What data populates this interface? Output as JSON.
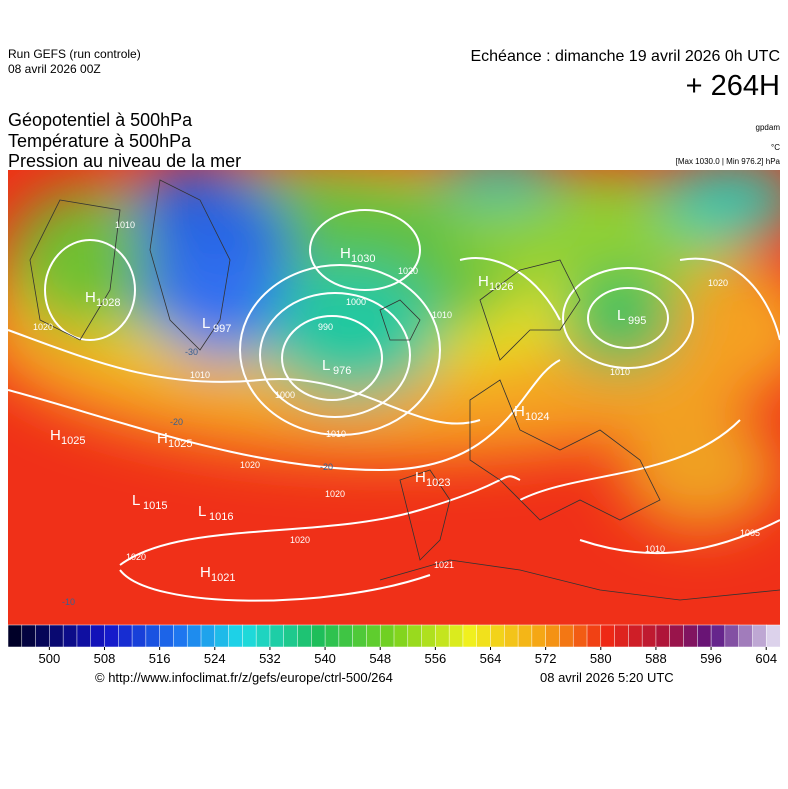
{
  "header": {
    "run": "Run GEFS (run controle)",
    "date": "08 avril 2026 00Z",
    "valid": "Echéance : dimanche 19 avril 2026 0h UTC",
    "lead": "+ 264H",
    "params": [
      "Géopotentiel à 500hPa",
      "Température à 500hPa",
      "Pression au niveau de la mer"
    ],
    "unit_geo": "gpdam",
    "unit_temp": "°C",
    "extrema": "[Max 1030.0 | Min 976.2] hPa"
  },
  "centers": [
    {
      "type": "H",
      "value": "1030"
    },
    {
      "type": "L",
      "value": "976"
    },
    {
      "type": "L",
      "value": "997"
    },
    {
      "type": "H",
      "value": "1028"
    },
    {
      "type": "H",
      "value": "1025"
    },
    {
      "type": "H",
      "value": "1025"
    },
    {
      "type": "L",
      "value": "1015"
    },
    {
      "type": "L",
      "value": "1016"
    },
    {
      "type": "H",
      "value": "1021"
    },
    {
      "type": "H",
      "value": "1023"
    },
    {
      "type": "H",
      "value": "1024"
    },
    {
      "type": "H",
      "value": "1026"
    },
    {
      "type": "L",
      "value": "995"
    }
  ],
  "isobar_labels": [
    "1020",
    "1000",
    "990",
    "1010",
    "1010",
    "1000",
    "1010",
    "1020",
    "1020",
    "1020",
    "1021",
    "1010",
    "1005",
    "1010",
    "1020",
    "1020",
    "1010",
    "1020"
  ],
  "temp_labels": [
    "-30",
    "-20",
    "-20",
    "-10"
  ],
  "colorbar": {
    "range": [
      494,
      606
    ],
    "ticks": [
      500,
      508,
      516,
      524,
      532,
      540,
      548,
      556,
      564,
      572,
      580,
      588,
      596,
      604
    ]
  },
  "footer": {
    "source": "© http://www.infoclimat.fr/z/gefs/europe/ctrl-500/264",
    "generated": "08 avril 2026  5:20 UTC"
  }
}
